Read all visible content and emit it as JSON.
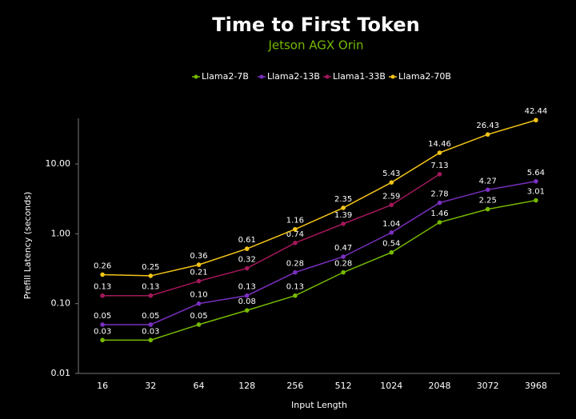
{
  "chart_data": {
    "type": "line",
    "title": "Time to First Token",
    "subtitle": "Jetson AGX Orin",
    "xlabel": "Input Length",
    "ylabel": "Prefill Latency (seconds)",
    "categories": [
      "16",
      "32",
      "64",
      "128",
      "256",
      "512",
      "1024",
      "2048",
      "3072",
      "3968"
    ],
    "log_y": true,
    "grid": false,
    "legend": "top",
    "ylim": [
      0.01,
      45
    ],
    "yticks": [
      0.01,
      {
        "value": 0.1,
        "label": "0.10"
      },
      {
        "value": 1,
        "label": "1.00"
      },
      {
        "value": 10,
        "label": "10.00"
      }
    ],
    "series": [
      {
        "name": "Llama2-7B",
        "color": "#76b900",
        "values": [
          0.03,
          0.03,
          0.05,
          0.08,
          0.13,
          0.28,
          0.54,
          1.46,
          2.25,
          3.01
        ],
        "value_labels": [
          "0.03",
          "0.03",
          "0.05",
          "0.08",
          "0.13",
          "0.28",
          "0.54",
          "1.46",
          "2.25",
          "3.01"
        ]
      },
      {
        "name": "Llama2-13B",
        "color": "#7a2fc0",
        "values": [
          0.05,
          0.05,
          0.1,
          0.13,
          0.28,
          0.47,
          1.04,
          2.78,
          4.27,
          5.64
        ],
        "value_labels": [
          "0.05",
          "0.05",
          "0.10",
          "0.13",
          "0.28",
          "0.47",
          "1.04",
          "2.78",
          "4.27",
          "5.64"
        ]
      },
      {
        "name": "Llama1-33B",
        "color": "#a3175a",
        "values": [
          0.13,
          0.13,
          0.21,
          0.32,
          0.74,
          1.39,
          2.59,
          7.13,
          null,
          null
        ],
        "value_labels": [
          "0.13",
          "0.13",
          "0.21",
          "0.32",
          "0.74",
          "1.39",
          "2.59",
          "7.13",
          null,
          null
        ]
      },
      {
        "name": "Llama2-70B",
        "color": "#f5c518",
        "values": [
          0.26,
          0.25,
          0.36,
          0.61,
          1.16,
          2.35,
          5.43,
          14.46,
          26.43,
          42.44
        ],
        "value_labels": [
          "0.26",
          "0.25",
          "0.36",
          "0.61",
          "1.16",
          "2.35",
          "5.43",
          "14.46",
          "26.43",
          "42.44"
        ]
      }
    ]
  }
}
